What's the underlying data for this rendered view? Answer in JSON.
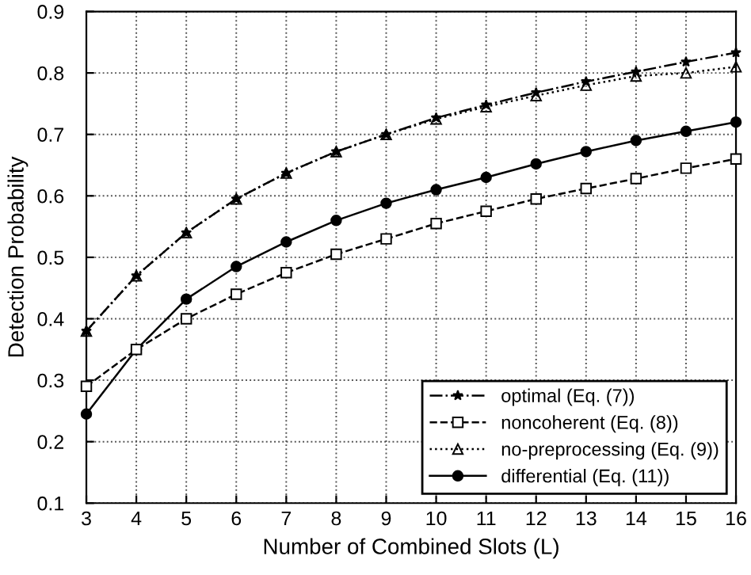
{
  "chart_data": {
    "type": "line",
    "xlabel": "Number of Combined Slots (L)",
    "ylabel": "Detection Probability",
    "x": [
      3,
      4,
      5,
      6,
      7,
      8,
      9,
      10,
      11,
      12,
      13,
      14,
      15,
      16
    ],
    "series": [
      {
        "name": "optimal (Eq. (7))",
        "color": "#000000",
        "marker": "star",
        "line_style": "dashdot",
        "values": [
          0.38,
          0.47,
          0.54,
          0.595,
          0.637,
          0.672,
          0.7,
          0.727,
          0.748,
          0.768,
          0.786,
          0.802,
          0.818,
          0.833
        ]
      },
      {
        "name": "noncoherent (Eq. (8))",
        "color": "#000000",
        "marker": "square",
        "line_style": "dashed",
        "values": [
          0.29,
          0.35,
          0.4,
          0.44,
          0.475,
          0.505,
          0.53,
          0.555,
          0.575,
          0.595,
          0.612,
          0.628,
          0.645,
          0.66
        ]
      },
      {
        "name": "no-preprocessing (Eq. (9))",
        "color": "#000000",
        "marker": "triangle",
        "line_style": "dotted",
        "values": [
          0.38,
          0.47,
          0.54,
          0.595,
          0.637,
          0.672,
          0.7,
          0.725,
          0.745,
          0.763,
          0.78,
          0.795,
          0.8,
          0.81
        ]
      },
      {
        "name": "differential (Eq. (11))",
        "color": "#000000",
        "marker": "circle",
        "line_style": "solid",
        "values": [
          0.245,
          0.35,
          0.432,
          0.485,
          0.525,
          0.56,
          0.588,
          0.61,
          0.63,
          0.652,
          0.672,
          0.69,
          0.705,
          0.72
        ]
      }
    ],
    "xlim": [
      3,
      16
    ],
    "xticks": [
      3,
      4,
      5,
      6,
      7,
      8,
      9,
      10,
      11,
      12,
      13,
      14,
      15,
      16
    ],
    "ylim": [
      0.1,
      0.9
    ],
    "yticks": [
      0.1,
      0.2,
      0.3,
      0.4,
      0.5,
      0.6,
      0.7,
      0.8,
      0.9
    ],
    "grid": true,
    "legend": "bottom right"
  }
}
